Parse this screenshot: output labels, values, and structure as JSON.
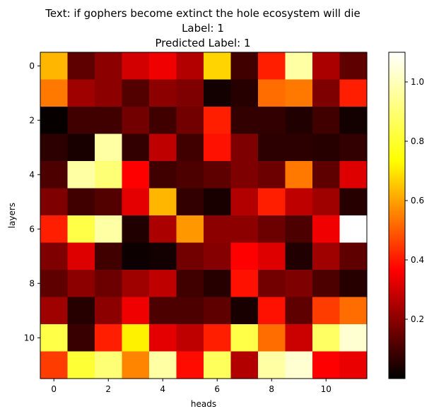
{
  "chart_data": {
    "type": "heatmap",
    "title_lines": [
      "Text: if gophers become extinct the hole ecosystem will die",
      "Label: 1",
      "Predicted Label: 1"
    ],
    "xlabel": "heads",
    "ylabel": "layers",
    "colormap": "hot",
    "x_ticks": [
      0,
      2,
      4,
      6,
      8,
      10
    ],
    "y_ticks": [
      0,
      2,
      4,
      6,
      8,
      10
    ],
    "colorbar_ticks": [
      0.2,
      0.4,
      0.6,
      0.8,
      1.0
    ],
    "colorbar_range": [
      0.0,
      1.1
    ],
    "rows": 12,
    "cols": 12,
    "values": [
      [
        0.7,
        0.15,
        0.22,
        0.33,
        0.38,
        0.28,
        0.75,
        0.1,
        0.45,
        1.0,
        0.27,
        0.15
      ],
      [
        0.6,
        0.25,
        0.22,
        0.13,
        0.22,
        0.2,
        0.03,
        0.06,
        0.58,
        0.6,
        0.2,
        0.45
      ],
      [
        0.01,
        0.1,
        0.1,
        0.18,
        0.1,
        0.18,
        0.45,
        0.08,
        0.08,
        0.05,
        0.1,
        0.03
      ],
      [
        0.07,
        0.04,
        1.0,
        0.08,
        0.3,
        0.1,
        0.43,
        0.2,
        0.07,
        0.07,
        0.06,
        0.08
      ],
      [
        0.12,
        1.0,
        0.95,
        0.4,
        0.1,
        0.12,
        0.15,
        0.2,
        0.17,
        0.6,
        0.15,
        0.35
      ],
      [
        0.2,
        0.1,
        0.13,
        0.36,
        0.7,
        0.08,
        0.04,
        0.28,
        0.45,
        0.3,
        0.25,
        0.06
      ],
      [
        0.45,
        0.9,
        1.0,
        0.05,
        0.27,
        0.65,
        0.22,
        0.22,
        0.17,
        0.12,
        0.38,
        1.1
      ],
      [
        0.2,
        0.35,
        0.1,
        0.02,
        0.03,
        0.18,
        0.21,
        0.4,
        0.35,
        0.05,
        0.25,
        0.15
      ],
      [
        0.15,
        0.22,
        0.17,
        0.25,
        0.3,
        0.1,
        0.06,
        0.43,
        0.18,
        0.2,
        0.12,
        0.06
      ],
      [
        0.25,
        0.06,
        0.22,
        0.38,
        0.12,
        0.12,
        0.15,
        0.04,
        0.43,
        0.15,
        0.5,
        0.58
      ],
      [
        0.9,
        0.09,
        0.45,
        0.8,
        0.36,
        0.3,
        0.45,
        0.9,
        0.58,
        0.32,
        0.93,
        1.05
      ],
      [
        0.5,
        0.88,
        0.95,
        0.62,
        1.0,
        0.42,
        0.92,
        0.28,
        1.0,
        1.05,
        0.4,
        0.37
      ]
    ]
  }
}
